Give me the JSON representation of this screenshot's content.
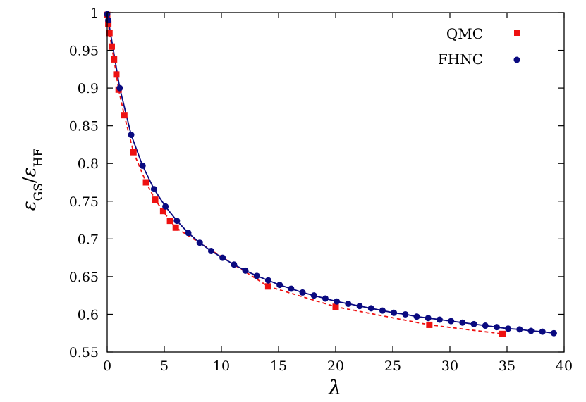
{
  "chart_data": {
    "type": "scatter",
    "xlabel": "λ",
    "ylabel": {
      "main": "ε",
      "sub1": "GS",
      "slash": "/",
      "main2": "ε",
      "sub2": "HF"
    },
    "xlim": [
      0,
      40
    ],
    "ylim": [
      0.55,
      1.0
    ],
    "xticks": [
      0,
      5,
      10,
      15,
      20,
      25,
      30,
      35,
      40
    ],
    "xtick_labels": [
      "0",
      "5",
      "10",
      "15",
      "20",
      "25",
      "30",
      "35",
      "40"
    ],
    "yticks": [
      0.55,
      0.6,
      0.65,
      0.7,
      0.75,
      0.8,
      0.85,
      0.9,
      0.95,
      1.0
    ],
    "ytick_labels": [
      "0.55",
      "0.6",
      "0.65",
      "0.7",
      "0.75",
      "0.8",
      "0.85",
      "0.9",
      "0.95",
      "1"
    ],
    "grid": false,
    "legend_position": "top-right",
    "series": [
      {
        "name": "QMC",
        "marker": "square",
        "color": "#ee1111",
        "line": "dashed",
        "x": [
          0,
          0.1,
          0.2,
          0.4,
          0.6,
          0.8,
          1.0,
          1.5,
          2.3,
          3.4,
          4.2,
          4.9,
          5.5,
          6.0,
          14.1,
          20.0,
          28.2,
          34.6
        ],
        "y": [
          0.997,
          0.985,
          0.973,
          0.955,
          0.938,
          0.918,
          0.898,
          0.864,
          0.815,
          0.775,
          0.752,
          0.737,
          0.724,
          0.715,
          0.637,
          0.61,
          0.586,
          0.574
        ]
      },
      {
        "name": "FHNC",
        "marker": "circle",
        "color": "#0a0a80",
        "line": "solid",
        "x": [
          0,
          0.1,
          1.1,
          2.1,
          3.1,
          4.1,
          5.1,
          6.1,
          7.1,
          8.1,
          9.1,
          10.1,
          11.1,
          12.1,
          13.1,
          14.1,
          15.1,
          16.1,
          17.1,
          18.1,
          19.1,
          20.1,
          21.1,
          22.1,
          23.1,
          24.1,
          25.1,
          26.1,
          27.1,
          28.1,
          29.1,
          30.1,
          31.1,
          32.1,
          33.1,
          34.1,
          35.1,
          36.1,
          37.1,
          38.1,
          39.1
        ],
        "y": [
          0.998,
          0.99,
          0.9,
          0.838,
          0.797,
          0.766,
          0.743,
          0.724,
          0.708,
          0.695,
          0.684,
          0.675,
          0.666,
          0.658,
          0.651,
          0.645,
          0.639,
          0.634,
          0.629,
          0.625,
          0.621,
          0.617,
          0.614,
          0.611,
          0.608,
          0.605,
          0.602,
          0.6,
          0.597,
          0.595,
          0.593,
          0.591,
          0.589,
          0.587,
          0.585,
          0.583,
          0.581,
          0.58,
          0.578,
          0.577,
          0.575
        ]
      }
    ]
  }
}
